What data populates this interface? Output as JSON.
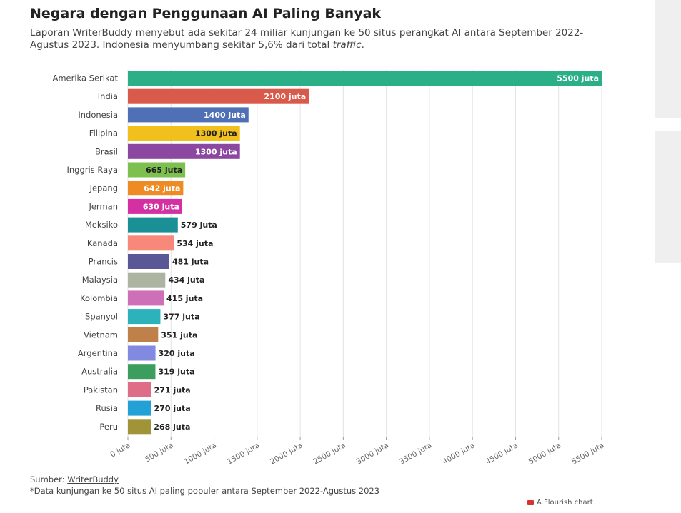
{
  "header": {
    "title": "Negara dengan Penggunaan AI Paling Banyak",
    "subtitle_main": "Laporan WriterBuddy menyebut ada sekitar 24 miliar kunjungan ke 50 situs perangkat AI antara September 2022-Agustus 2023. Indonesia menyumbang sekitar 5,6% dari total",
    "subtitle_em": "traffic",
    "subtitle_end": "."
  },
  "footer": {
    "source_prefix": "Sumber: ",
    "source_link": "WriterBuddy",
    "note": "*Data kunjungan ke 50 situs AI paling populer antara September 2022-Agustus 2023",
    "credit": "A Flourish chart"
  },
  "chart_data": {
    "type": "bar",
    "orientation": "horizontal",
    "title": "Negara dengan Penggunaan AI Paling Banyak",
    "unit_label": "juta",
    "xlim": [
      0,
      5500
    ],
    "x_ticks": [
      0,
      500,
      1000,
      1500,
      2000,
      2500,
      3000,
      3500,
      4000,
      4500,
      5000,
      5500
    ],
    "x_tick_labels": [
      "0 juta",
      "500 juta",
      "1000 juta",
      "1500 juta",
      "2000 juta",
      "2500 juta",
      "3000 juta",
      "3500 juta",
      "4000 juta",
      "4500 juta",
      "5000 juta",
      "5500 juta"
    ],
    "grid": true,
    "categories": [
      "Amerika Serikat",
      "India",
      "Indonesia",
      "Filipina",
      "Brasil",
      "Inggris Raya",
      "Jepang",
      "Jerman",
      "Meksiko",
      "Kanada",
      "Prancis",
      "Malaysia",
      "Kolombia",
      "Spanyol",
      "Vietnam",
      "Argentina",
      "Australia",
      "Pakistan",
      "Rusia",
      "Peru"
    ],
    "values": [
      5500,
      2100,
      1400,
      1300,
      1300,
      665,
      642,
      630,
      579,
      534,
      481,
      434,
      415,
      377,
      351,
      320,
      319,
      271,
      270,
      268
    ],
    "value_labels": [
      "5500 juta",
      "2100 juta",
      "1400 juta",
      "1300 juta",
      "1300 juta",
      "665 juta",
      "642 juta",
      "630 juta",
      "579 juta",
      "534 juta",
      "481 juta",
      "434 juta",
      "415 juta",
      "377 juta",
      "351 juta",
      "320 juta",
      "319 juta",
      "271 juta",
      "270 juta",
      "268 juta"
    ],
    "colors": [
      "#2aaf86",
      "#d9594b",
      "#4f70b4",
      "#f2c01d",
      "#8c48a0",
      "#7ec04f",
      "#ef8b24",
      "#d42fa3",
      "#1b8f96",
      "#f7887a",
      "#5a5796",
      "#adb4a2",
      "#cd70b8",
      "#2bb2ba",
      "#c0804a",
      "#8189e0",
      "#3c9e5e",
      "#de6e88",
      "#23a1d6",
      "#a09338"
    ],
    "label_inside": [
      true,
      true,
      true,
      true,
      true,
      true,
      true,
      true,
      false,
      false,
      false,
      false,
      false,
      false,
      false,
      false,
      false,
      false,
      false,
      false
    ],
    "label_colors": [
      "#ffffff",
      "#ffffff",
      "#ffffff",
      "#222222",
      "#ffffff",
      "#222222",
      "#ffffff",
      "#ffffff",
      "#222222",
      "#222222",
      "#222222",
      "#222222",
      "#222222",
      "#222222",
      "#222222",
      "#222222",
      "#222222",
      "#222222",
      "#222222",
      "#222222"
    ]
  }
}
